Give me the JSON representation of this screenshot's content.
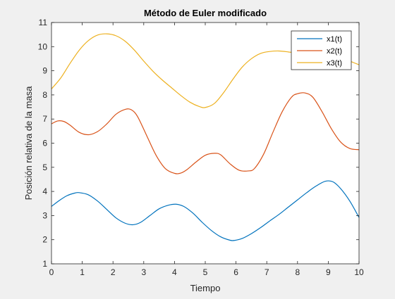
{
  "chart_data": {
    "type": "line",
    "title": "Método de Euler modificado",
    "xlabel": "Tiempo",
    "ylabel": "Posición relativa de la masa",
    "xlim": [
      0,
      10
    ],
    "ylim": [
      1,
      11
    ],
    "xticks": [
      0,
      1,
      2,
      3,
      4,
      5,
      6,
      7,
      8,
      9,
      10
    ],
    "yticks": [
      1,
      2,
      3,
      4,
      5,
      6,
      7,
      8,
      9,
      10,
      11
    ],
    "grid": false,
    "legend_position": "top-right",
    "series": [
      {
        "name": "x1(t)",
        "color": "#0072BD",
        "x": [
          0,
          0.25,
          0.5,
          0.75,
          0.9,
          1.2,
          1.5,
          1.8,
          2.1,
          2.4,
          2.65,
          2.9,
          3.2,
          3.5,
          3.8,
          4.05,
          4.3,
          4.6,
          4.9,
          5.2,
          5.5,
          5.8,
          5.95,
          6.2,
          6.5,
          6.8,
          7.1,
          7.4,
          7.7,
          8.0,
          8.3,
          8.6,
          8.9,
          9.15,
          9.4,
          9.7,
          10.0
        ],
        "y": [
          3.38,
          3.62,
          3.82,
          3.93,
          3.95,
          3.86,
          3.6,
          3.25,
          2.9,
          2.68,
          2.62,
          2.72,
          3.0,
          3.28,
          3.43,
          3.47,
          3.38,
          3.1,
          2.72,
          2.38,
          2.12,
          1.98,
          1.97,
          2.05,
          2.25,
          2.5,
          2.78,
          3.05,
          3.35,
          3.65,
          3.95,
          4.22,
          4.42,
          4.4,
          4.12,
          3.6,
          2.92
        ]
      },
      {
        "name": "x2(t)",
        "color": "#D95319",
        "x": [
          0,
          0.2,
          0.4,
          0.6,
          0.9,
          1.2,
          1.5,
          1.8,
          2.1,
          2.4,
          2.6,
          2.8,
          3.1,
          3.4,
          3.7,
          4.0,
          4.2,
          4.4,
          4.7,
          5.0,
          5.3,
          5.5,
          5.8,
          6.1,
          6.4,
          6.6,
          6.9,
          7.2,
          7.5,
          7.8,
          8.0,
          8.25,
          8.5,
          8.8,
          9.1,
          9.4,
          9.7,
          10.0
        ],
        "y": [
          6.8,
          6.92,
          6.9,
          6.75,
          6.45,
          6.35,
          6.48,
          6.8,
          7.2,
          7.4,
          7.38,
          7.1,
          6.3,
          5.5,
          4.95,
          4.75,
          4.76,
          4.9,
          5.22,
          5.5,
          5.58,
          5.52,
          5.15,
          4.88,
          4.85,
          4.95,
          5.55,
          6.45,
          7.3,
          7.9,
          8.05,
          8.08,
          7.9,
          7.3,
          6.6,
          6.05,
          5.78,
          5.73
        ]
      },
      {
        "name": "x3(t)",
        "color": "#EDB120",
        "x": [
          0,
          0.3,
          0.6,
          0.9,
          1.2,
          1.5,
          1.8,
          2.1,
          2.4,
          2.7,
          3.0,
          3.3,
          3.6,
          3.9,
          4.2,
          4.5,
          4.8,
          5.0,
          5.3,
          5.6,
          5.9,
          6.2,
          6.5,
          6.8,
          7.1,
          7.4,
          7.7,
          8.0,
          8.3,
          8.6,
          8.9,
          9.2,
          9.5,
          9.8,
          10.0
        ],
        "y": [
          8.25,
          8.7,
          9.3,
          9.85,
          10.25,
          10.48,
          10.53,
          10.45,
          10.22,
          9.85,
          9.4,
          8.98,
          8.62,
          8.3,
          7.98,
          7.7,
          7.52,
          7.48,
          7.65,
          8.1,
          8.65,
          9.15,
          9.5,
          9.72,
          9.8,
          9.82,
          9.78,
          9.72,
          9.62,
          9.55,
          9.6,
          9.65,
          9.5,
          9.35,
          9.25
        ]
      }
    ]
  }
}
